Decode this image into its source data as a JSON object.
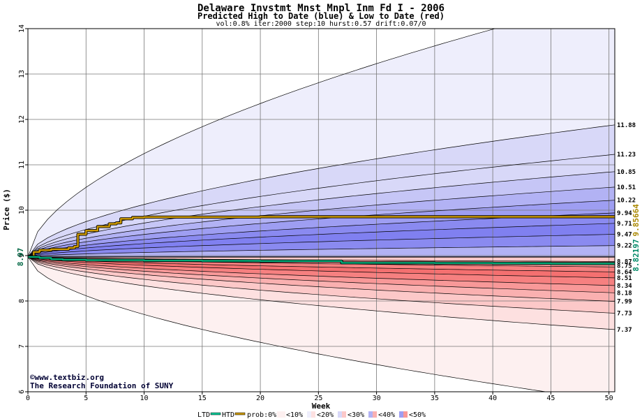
{
  "chart_data": {
    "type": "area",
    "title": "Delaware Invstmt Mnst Mnpl Inm Fd I - 2006",
    "subtitle": "Predicted High to Date (blue) &  Low to Date (red)",
    "params": "vol:0.8% iter:2000 step:10 hurst:0.57 drift:0.07/0",
    "xlabel": "Week",
    "ylabel": "Price ($)",
    "xlim": [
      0,
      50.5
    ],
    "ylim": [
      6,
      14
    ],
    "x_ticks": [
      0,
      5,
      10,
      15,
      20,
      25,
      30,
      35,
      40,
      45,
      50
    ],
    "y_ticks": [
      6,
      7,
      8,
      9,
      10,
      11,
      12,
      13,
      14
    ],
    "grid": true,
    "start_price": 8.97,
    "start_label": "8.97",
    "htd_final_label": "9.85664",
    "ltd_final_label": "8.82197",
    "high_bands": [
      {
        "label": "9.22",
        "end": 9.22
      },
      {
        "label": "9.47",
        "end": 9.47
      },
      {
        "label": "9.71",
        "end": 9.71
      },
      {
        "label": "9.94",
        "end": 9.94
      },
      {
        "label": "10.22",
        "end": 10.22
      },
      {
        "label": "10.51",
        "end": 10.51
      },
      {
        "label": "10.85",
        "end": 10.85
      },
      {
        "label": "11.23",
        "end": 11.23
      },
      {
        "label": "11.88",
        "end": 11.88
      }
    ],
    "high_outer": {
      "end": 14.7
    },
    "low_bands": [
      {
        "label": "8.87",
        "end": 8.87
      },
      {
        "label": "8.75",
        "end": 8.75
      },
      {
        "label": "8.64",
        "end": 8.64
      },
      {
        "label": "8.51",
        "end": 8.51
      },
      {
        "label": "8.34",
        "end": 8.34
      },
      {
        "label": "8.18",
        "end": 8.18
      },
      {
        "label": "7.99",
        "end": 7.99
      },
      {
        "label": "7.73",
        "end": 7.73
      },
      {
        "label": "7.37",
        "end": 7.37
      }
    ],
    "low_outer": {
      "end": 5.78
    },
    "series": [
      {
        "name": "HTD",
        "color": "#cc9900",
        "x": [
          0,
          0.5,
          1,
          2,
          3,
          3.5,
          4,
          4.3,
          5,
          5.8,
          6,
          7,
          7.6,
          8,
          9,
          10,
          20,
          30,
          40,
          50.5
        ],
        "y": [
          8.97,
          9.08,
          9.12,
          9.14,
          9.14,
          9.17,
          9.2,
          9.47,
          9.55,
          9.55,
          9.64,
          9.7,
          9.72,
          9.81,
          9.84,
          9.85,
          9.855,
          9.855,
          9.856,
          9.85664
        ]
      },
      {
        "name": "LTD",
        "color": "#00aa77",
        "x": [
          0,
          1,
          2,
          3,
          5,
          10,
          15,
          20,
          26,
          27,
          35,
          40,
          45,
          50.5
        ],
        "y": [
          8.97,
          8.95,
          8.92,
          8.91,
          8.9,
          8.89,
          8.885,
          8.88,
          8.88,
          8.84,
          8.835,
          8.83,
          8.825,
          8.82197
        ]
      }
    ]
  },
  "credit": {
    "url": "©www.textbiz.org",
    "org": "The Research Foundation of SUNY"
  },
  "legend": {
    "ltd": "LTD",
    "htd": "HTD",
    "prob": "prob:0%",
    "items": [
      "<10%",
      "<20%",
      "<30%",
      "<40%",
      "<50%"
    ]
  },
  "colors": {
    "blue_bands": [
      "#eeeefc",
      "#d8d8f8",
      "#c6c6f6",
      "#b2b2f4",
      "#9e9ef2",
      "#8a8af0",
      "#8080f0"
    ],
    "red_bands": [
      "#fdf0f0",
      "#fde0e0",
      "#fcc8c8",
      "#fab0b0",
      "#f89898",
      "#f68080",
      "#f47070"
    ]
  }
}
